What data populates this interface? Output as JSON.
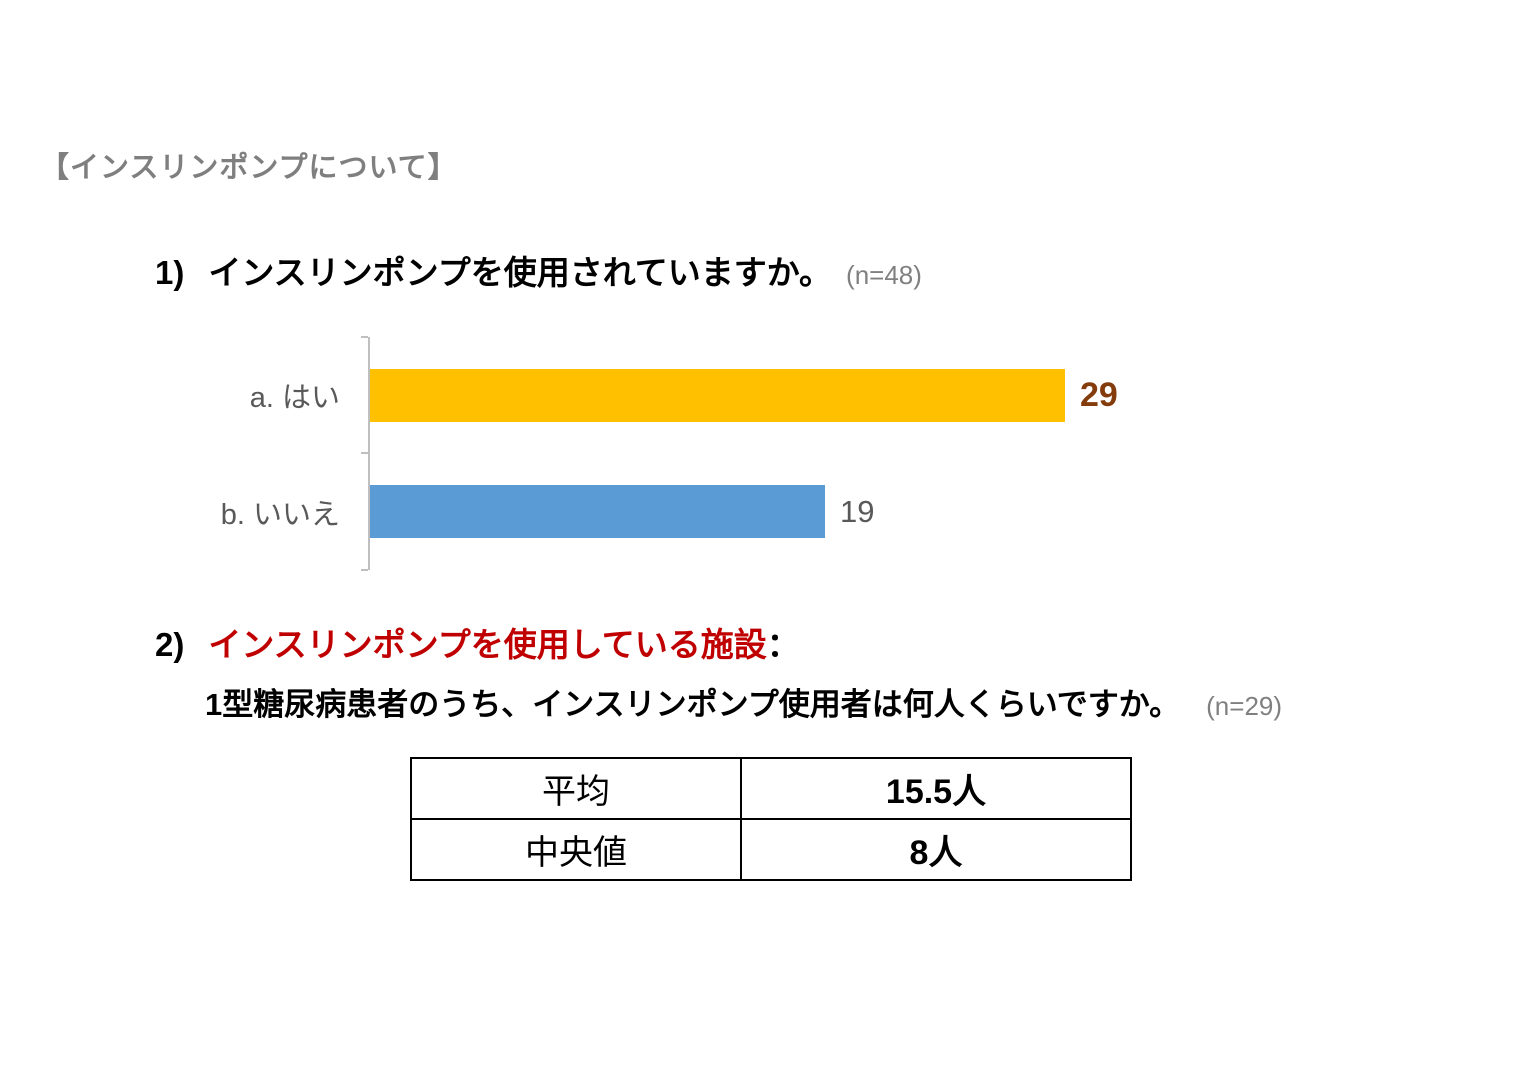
{
  "header": "【インスリンポンプについて】",
  "q1": {
    "number": "1)",
    "text": "インスリンポンプを使用されていますか。",
    "sample": "(n=48)"
  },
  "q2": {
    "number": "2)",
    "highlight": "インスリンポンプを使用している施設",
    "colon": "：",
    "subtext": "1型糖尿病患者のうち、インスリンポンプ使用者は何人くらいですか。",
    "sample": "(n=29)"
  },
  "chart_data": [
    {
      "type": "bar",
      "orientation": "horizontal",
      "title": "1) インスリンポンプを使用されていますか。 (n=48)",
      "categories": [
        "a. はい",
        "b. いいえ"
      ],
      "values": [
        29,
        19
      ],
      "xlim": [
        0,
        29
      ],
      "grid": false,
      "legend": false,
      "bar_colors": [
        "#FFC000",
        "#5B9BD5"
      ],
      "value_label_colors": [
        "#843C0C",
        "#595959"
      ],
      "axis_color": "#BFBFBF"
    },
    {
      "type": "table",
      "rows": [
        [
          "平均",
          "15.5人"
        ],
        [
          "中央値",
          "8人"
        ]
      ]
    }
  ]
}
